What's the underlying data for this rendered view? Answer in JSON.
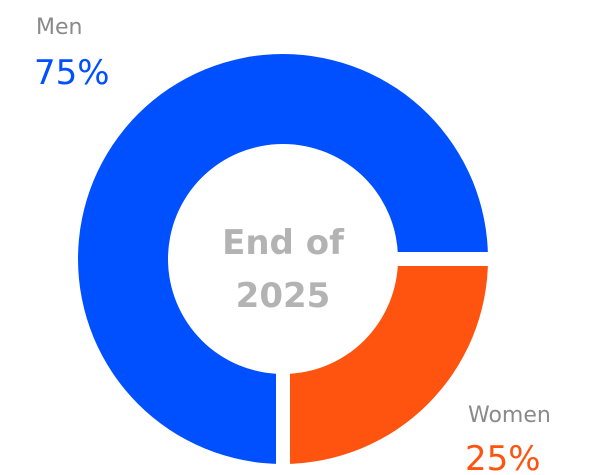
{
  "chart_data": {
    "type": "donut",
    "categories": [
      "Men",
      "Women"
    ],
    "values": [
      75,
      25
    ],
    "value_labels": [
      "75%",
      "25%"
    ],
    "colors": [
      "#0050ff",
      "#ff5310"
    ],
    "center_label": [
      "End of",
      "2025"
    ]
  }
}
